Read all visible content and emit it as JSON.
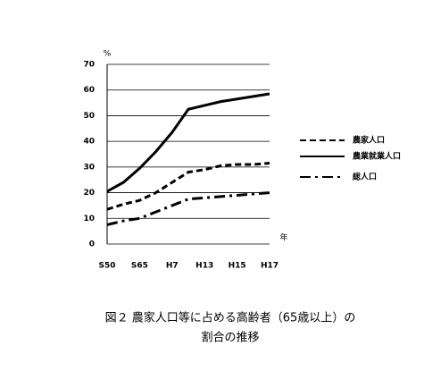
{
  "chart_data": {
    "type": "line",
    "title_lines": [
      "図２ 農家人口等に占める高齢者（65歳以上）の",
      "割合の推移"
    ],
    "y_unit": "%",
    "x_unit": "年",
    "categories": [
      "S50",
      null,
      "S65",
      null,
      "H7",
      null,
      "H13",
      null,
      "H15",
      null,
      "H17"
    ],
    "series": [
      {
        "name": "農家人口",
        "color": "#000000",
        "dash": "dashed",
        "values": [
          13.5,
          15.5,
          17,
          20,
          24,
          28,
          29,
          30.5,
          31,
          31,
          31.5
        ]
      },
      {
        "name": "農業就業人口",
        "color": "#000000",
        "dash": "solid",
        "values": [
          20.5,
          24,
          29.5,
          36,
          43.5,
          52.5,
          54,
          55.5,
          56.5,
          57.5,
          58.5
        ]
      },
      {
        "name": "総人口",
        "color": "#000000",
        "dash": "dashdot",
        "values": [
          7.5,
          9,
          10,
          12.5,
          15,
          17.5,
          18,
          18.5,
          19,
          19.5,
          20
        ]
      }
    ],
    "ylim": [
      0,
      70
    ],
    "yticks": [
      0,
      10,
      20,
      30,
      40,
      50,
      60,
      70
    ],
    "grid": true,
    "legend": "right"
  }
}
